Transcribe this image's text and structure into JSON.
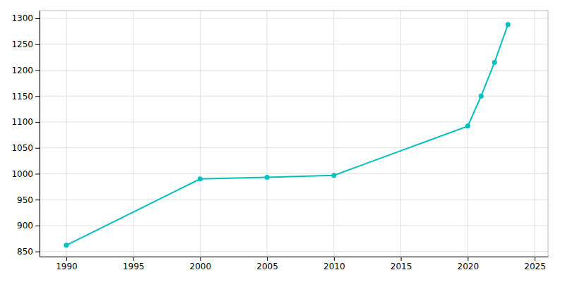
{
  "chart_data": {
    "type": "line",
    "x": [
      1990,
      2000,
      2005,
      2010,
      2020,
      2021,
      2022,
      2023
    ],
    "values": [
      862,
      990,
      993,
      997,
      1092,
      1150,
      1215,
      1288
    ],
    "color": "#00BFBF",
    "marker": "circle",
    "xlim": [
      1988,
      2026
    ],
    "ylim": [
      840,
      1315
    ],
    "xticks": [
      1990,
      1995,
      2000,
      2005,
      2010,
      2015,
      2020,
      2025
    ],
    "yticks": [
      850,
      900,
      950,
      1000,
      1050,
      1100,
      1150,
      1200,
      1250,
      1300
    ],
    "grid": true
  }
}
